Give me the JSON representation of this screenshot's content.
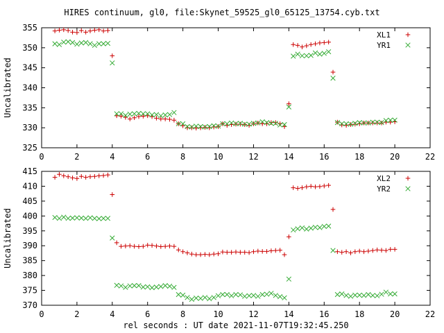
{
  "title": "HIRES continuum, gl0, file:Skynet_59525_gl0_65125_13754.cyb.txt",
  "xlabel": "rel seconds : UT date 2021-11-07T19:32:45.250",
  "colors": {
    "plus": "#cc0000",
    "cross": "#33aa33"
  },
  "chart_data": [
    {
      "type": "scatter",
      "ylabel": "Uncalibrated",
      "xlim": [
        0,
        22
      ],
      "ylim": [
        325,
        355
      ],
      "xticks": [
        0,
        2,
        4,
        6,
        8,
        10,
        12,
        14,
        16,
        18,
        20,
        22
      ],
      "yticks": [
        325,
        330,
        335,
        340,
        345,
        350,
        355
      ],
      "x": [
        0.75,
        1.0,
        1.25,
        1.5,
        1.75,
        2.0,
        2.25,
        2.5,
        2.75,
        3.0,
        3.25,
        3.5,
        3.75,
        4.0,
        4.25,
        4.5,
        4.75,
        5.0,
        5.25,
        5.5,
        5.75,
        6.0,
        6.25,
        6.5,
        6.75,
        7.0,
        7.25,
        7.5,
        7.75,
        8.0,
        8.25,
        8.5,
        8.75,
        9.0,
        9.25,
        9.5,
        9.75,
        10.0,
        10.25,
        10.5,
        10.75,
        11.0,
        11.25,
        11.5,
        11.75,
        12.0,
        12.25,
        12.5,
        12.75,
        13.0,
        13.25,
        13.5,
        13.75,
        14.0,
        14.25,
        14.5,
        14.75,
        15.0,
        15.25,
        15.5,
        15.75,
        16.0,
        16.25,
        16.5,
        16.75,
        17.0,
        17.25,
        17.5,
        17.75,
        18.0,
        18.25,
        18.5,
        18.75,
        19.0,
        19.25,
        19.5,
        19.75,
        20.0
      ],
      "series": [
        {
          "name": "XL1",
          "marker": "plus",
          "values": [
            354.2,
            354.4,
            354.5,
            354.3,
            353.9,
            353.8,
            354.3,
            353.9,
            354.2,
            354.4,
            354.5,
            354.2,
            354.3,
            348.0,
            333.0,
            332.9,
            332.6,
            332.2,
            332.5,
            332.8,
            332.9,
            333.0,
            332.8,
            332.4,
            332.2,
            332.2,
            332.1,
            331.9,
            331.0,
            330.5,
            330.0,
            330.0,
            329.9,
            330.0,
            330.1,
            330.0,
            330.2,
            330.3,
            331.0,
            330.6,
            330.8,
            330.9,
            330.9,
            330.8,
            330.6,
            331.0,
            331.2,
            331.0,
            331.0,
            331.3,
            331.3,
            331.0,
            330.3,
            336.0,
            350.8,
            350.6,
            350.2,
            350.5,
            350.8,
            351.0,
            351.2,
            351.3,
            351.4,
            343.9,
            331.4,
            330.7,
            330.6,
            330.8,
            330.9,
            331.0,
            331.2,
            331.2,
            331.2,
            331.2,
            331.2,
            331.4,
            331.4,
            331.5
          ]
        },
        {
          "name": "YR1",
          "marker": "cross",
          "values": [
            351.0,
            350.8,
            351.4,
            351.5,
            351.3,
            350.9,
            351.2,
            351.3,
            351.0,
            350.6,
            351.0,
            351.0,
            351.1,
            346.2,
            333.5,
            333.5,
            333.1,
            333.4,
            333.5,
            333.6,
            333.5,
            333.5,
            333.2,
            333.3,
            333.0,
            333.2,
            333.3,
            333.8,
            331.0,
            331.0,
            330.3,
            330.2,
            330.4,
            330.3,
            330.2,
            330.3,
            330.5,
            330.4,
            331.0,
            331.0,
            331.2,
            331.0,
            331.1,
            330.9,
            330.9,
            331.1,
            331.2,
            331.5,
            331.3,
            331.1,
            331.1,
            330.7,
            330.8,
            335.2,
            347.9,
            348.4,
            348.0,
            348.0,
            348.1,
            348.7,
            348.4,
            348.6,
            349.0,
            342.4,
            331.3,
            331.0,
            331.0,
            330.9,
            331.1,
            331.3,
            331.2,
            331.2,
            331.4,
            331.4,
            331.3,
            331.8,
            331.9,
            331.9
          ]
        }
      ],
      "legend": "top-right"
    },
    {
      "type": "scatter",
      "ylabel": "Uncalibrated",
      "xlim": [
        0,
        22
      ],
      "ylim": [
        370,
        415
      ],
      "xticks": [
        0,
        2,
        4,
        6,
        8,
        10,
        12,
        14,
        16,
        18,
        20,
        22
      ],
      "yticks": [
        370,
        375,
        380,
        385,
        390,
        395,
        400,
        405,
        410,
        415
      ],
      "x": [
        0.75,
        1.0,
        1.25,
        1.5,
        1.75,
        2.0,
        2.25,
        2.5,
        2.75,
        3.0,
        3.25,
        3.5,
        3.75,
        4.0,
        4.25,
        4.5,
        4.75,
        5.0,
        5.25,
        5.5,
        5.75,
        6.0,
        6.25,
        6.5,
        6.75,
        7.0,
        7.25,
        7.5,
        7.75,
        8.0,
        8.25,
        8.5,
        8.75,
        9.0,
        9.25,
        9.5,
        9.75,
        10.0,
        10.25,
        10.5,
        10.75,
        11.0,
        11.25,
        11.5,
        11.75,
        12.0,
        12.25,
        12.5,
        12.75,
        13.0,
        13.25,
        13.5,
        13.75,
        14.0,
        14.25,
        14.5,
        14.75,
        15.0,
        15.25,
        15.5,
        15.75,
        16.0,
        16.25,
        16.5,
        16.75,
        17.0,
        17.25,
        17.5,
        17.75,
        18.0,
        18.25,
        18.5,
        18.75,
        19.0,
        19.25,
        19.5,
        19.75,
        20.0
      ],
      "series": [
        {
          "name": "XL2",
          "marker": "plus",
          "values": [
            413.0,
            414.0,
            413.5,
            413.2,
            412.8,
            412.6,
            413.3,
            413.0,
            413.2,
            413.3,
            413.5,
            413.6,
            413.8,
            407.2,
            391.0,
            389.8,
            389.9,
            390.0,
            389.8,
            389.7,
            389.8,
            390.2,
            390.1,
            389.9,
            389.7,
            389.8,
            389.9,
            389.8,
            388.6,
            388.0,
            387.6,
            387.2,
            387.0,
            387.0,
            387.1,
            387.0,
            387.2,
            387.3,
            387.9,
            387.8,
            387.8,
            387.9,
            387.8,
            387.8,
            387.7,
            388.0,
            388.2,
            388.1,
            388.1,
            388.3,
            388.4,
            388.5,
            387.0,
            393.0,
            409.5,
            409.3,
            409.5,
            409.8,
            410.0,
            409.8,
            409.9,
            410.1,
            410.3,
            402.2,
            388.0,
            387.8,
            388.0,
            387.6,
            388.0,
            388.2,
            388.0,
            388.2,
            388.4,
            388.6,
            388.5,
            388.4,
            388.8,
            388.8
          ]
        },
        {
          "name": "YR2",
          "marker": "cross",
          "values": [
            399.5,
            399.2,
            399.6,
            399.2,
            399.3,
            399.4,
            399.3,
            399.2,
            399.4,
            399.2,
            399.1,
            399.2,
            399.2,
            392.6,
            376.7,
            376.5,
            376.0,
            376.5,
            376.6,
            376.6,
            376.1,
            376.2,
            375.9,
            376.1,
            376.3,
            376.6,
            376.4,
            376.0,
            373.6,
            373.4,
            372.6,
            372.0,
            372.4,
            372.3,
            372.6,
            372.2,
            372.6,
            373.2,
            373.6,
            373.6,
            373.2,
            373.6,
            373.5,
            373.0,
            373.2,
            373.3,
            373.0,
            373.6,
            373.7,
            374.0,
            373.3,
            372.9,
            372.5,
            378.8,
            395.3,
            395.7,
            396.0,
            395.6,
            395.9,
            396.2,
            396.1,
            396.5,
            396.6,
            388.4,
            373.6,
            373.8,
            373.3,
            373.0,
            373.4,
            373.4,
            373.3,
            373.6,
            373.3,
            373.2,
            373.7,
            374.4,
            373.8,
            373.8
          ]
        }
      ],
      "legend": "top-right"
    }
  ]
}
